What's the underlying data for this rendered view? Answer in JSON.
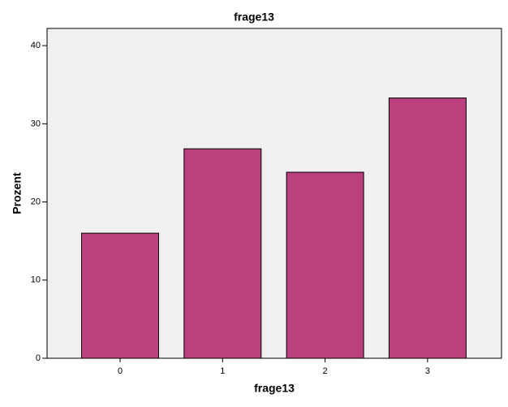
{
  "chart_data": {
    "type": "bar",
    "title": "frage13",
    "x_label": "frage13",
    "y_label": "Prozent",
    "categories": [
      "0",
      "1",
      "2",
      "3"
    ],
    "values": [
      16.0,
      26.8,
      23.8,
      33.3
    ],
    "color": "#bc3f7e",
    "ylim": [
      0,
      42.2
    ],
    "yticks": [
      0,
      10,
      20,
      30,
      40
    ],
    "grid": false
  }
}
